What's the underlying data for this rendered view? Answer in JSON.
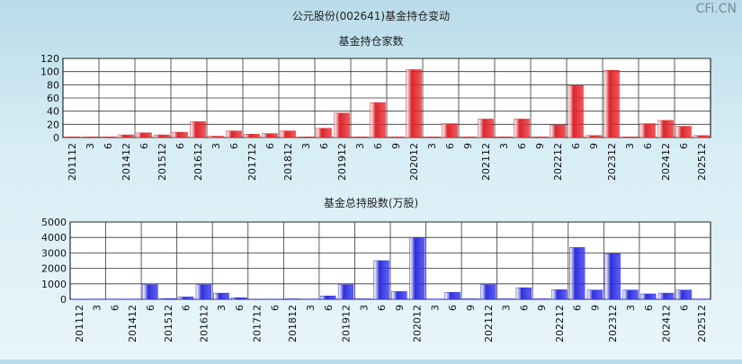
{
  "title": "公元股份(002641)基金持仓变动",
  "brand": "CFi.CN",
  "colors": {
    "bar1": "#e0242a",
    "bar2": "#2d2fe0"
  },
  "x_labels": [
    "201112",
    "3",
    "6",
    "201412",
    "6",
    "201512",
    "6",
    "201612",
    "3",
    "6",
    "201712",
    "6",
    "201812",
    "3",
    "6",
    "201912",
    "3",
    "6",
    "9",
    "202012",
    "3",
    "6",
    "9",
    "202112",
    "3",
    "6",
    "9",
    "202212",
    "6",
    "9",
    "202312",
    "3",
    "6",
    "202412",
    "6",
    "202512"
  ],
  "chart_data": [
    {
      "type": "bar",
      "title": "基金持仓家数",
      "ylim": [
        0,
        120
      ],
      "yticks": [
        0,
        20,
        40,
        60,
        80,
        100,
        120
      ],
      "values": [
        1,
        1,
        1,
        4,
        7,
        4,
        8,
        24,
        2,
        10,
        5,
        6,
        10,
        1,
        14,
        37,
        1,
        53,
        1,
        103,
        1,
        21,
        1,
        28,
        1,
        28,
        1,
        19,
        79,
        3,
        102,
        1,
        21,
        26,
        17,
        3
      ]
    },
    {
      "type": "bar",
      "title": "基金总持股数(万股)",
      "ylim": [
        0,
        5000
      ],
      "yticks": [
        0,
        1000,
        2000,
        3000,
        4000,
        5000
      ],
      "values": [
        10,
        20,
        20,
        20,
        950,
        50,
        150,
        950,
        400,
        100,
        10,
        10,
        30,
        20,
        220,
        950,
        30,
        2500,
        500,
        4000,
        20,
        450,
        30,
        950,
        30,
        750,
        30,
        620,
        3350,
        600,
        2950,
        600,
        350,
        400,
        600,
        20
      ]
    }
  ]
}
